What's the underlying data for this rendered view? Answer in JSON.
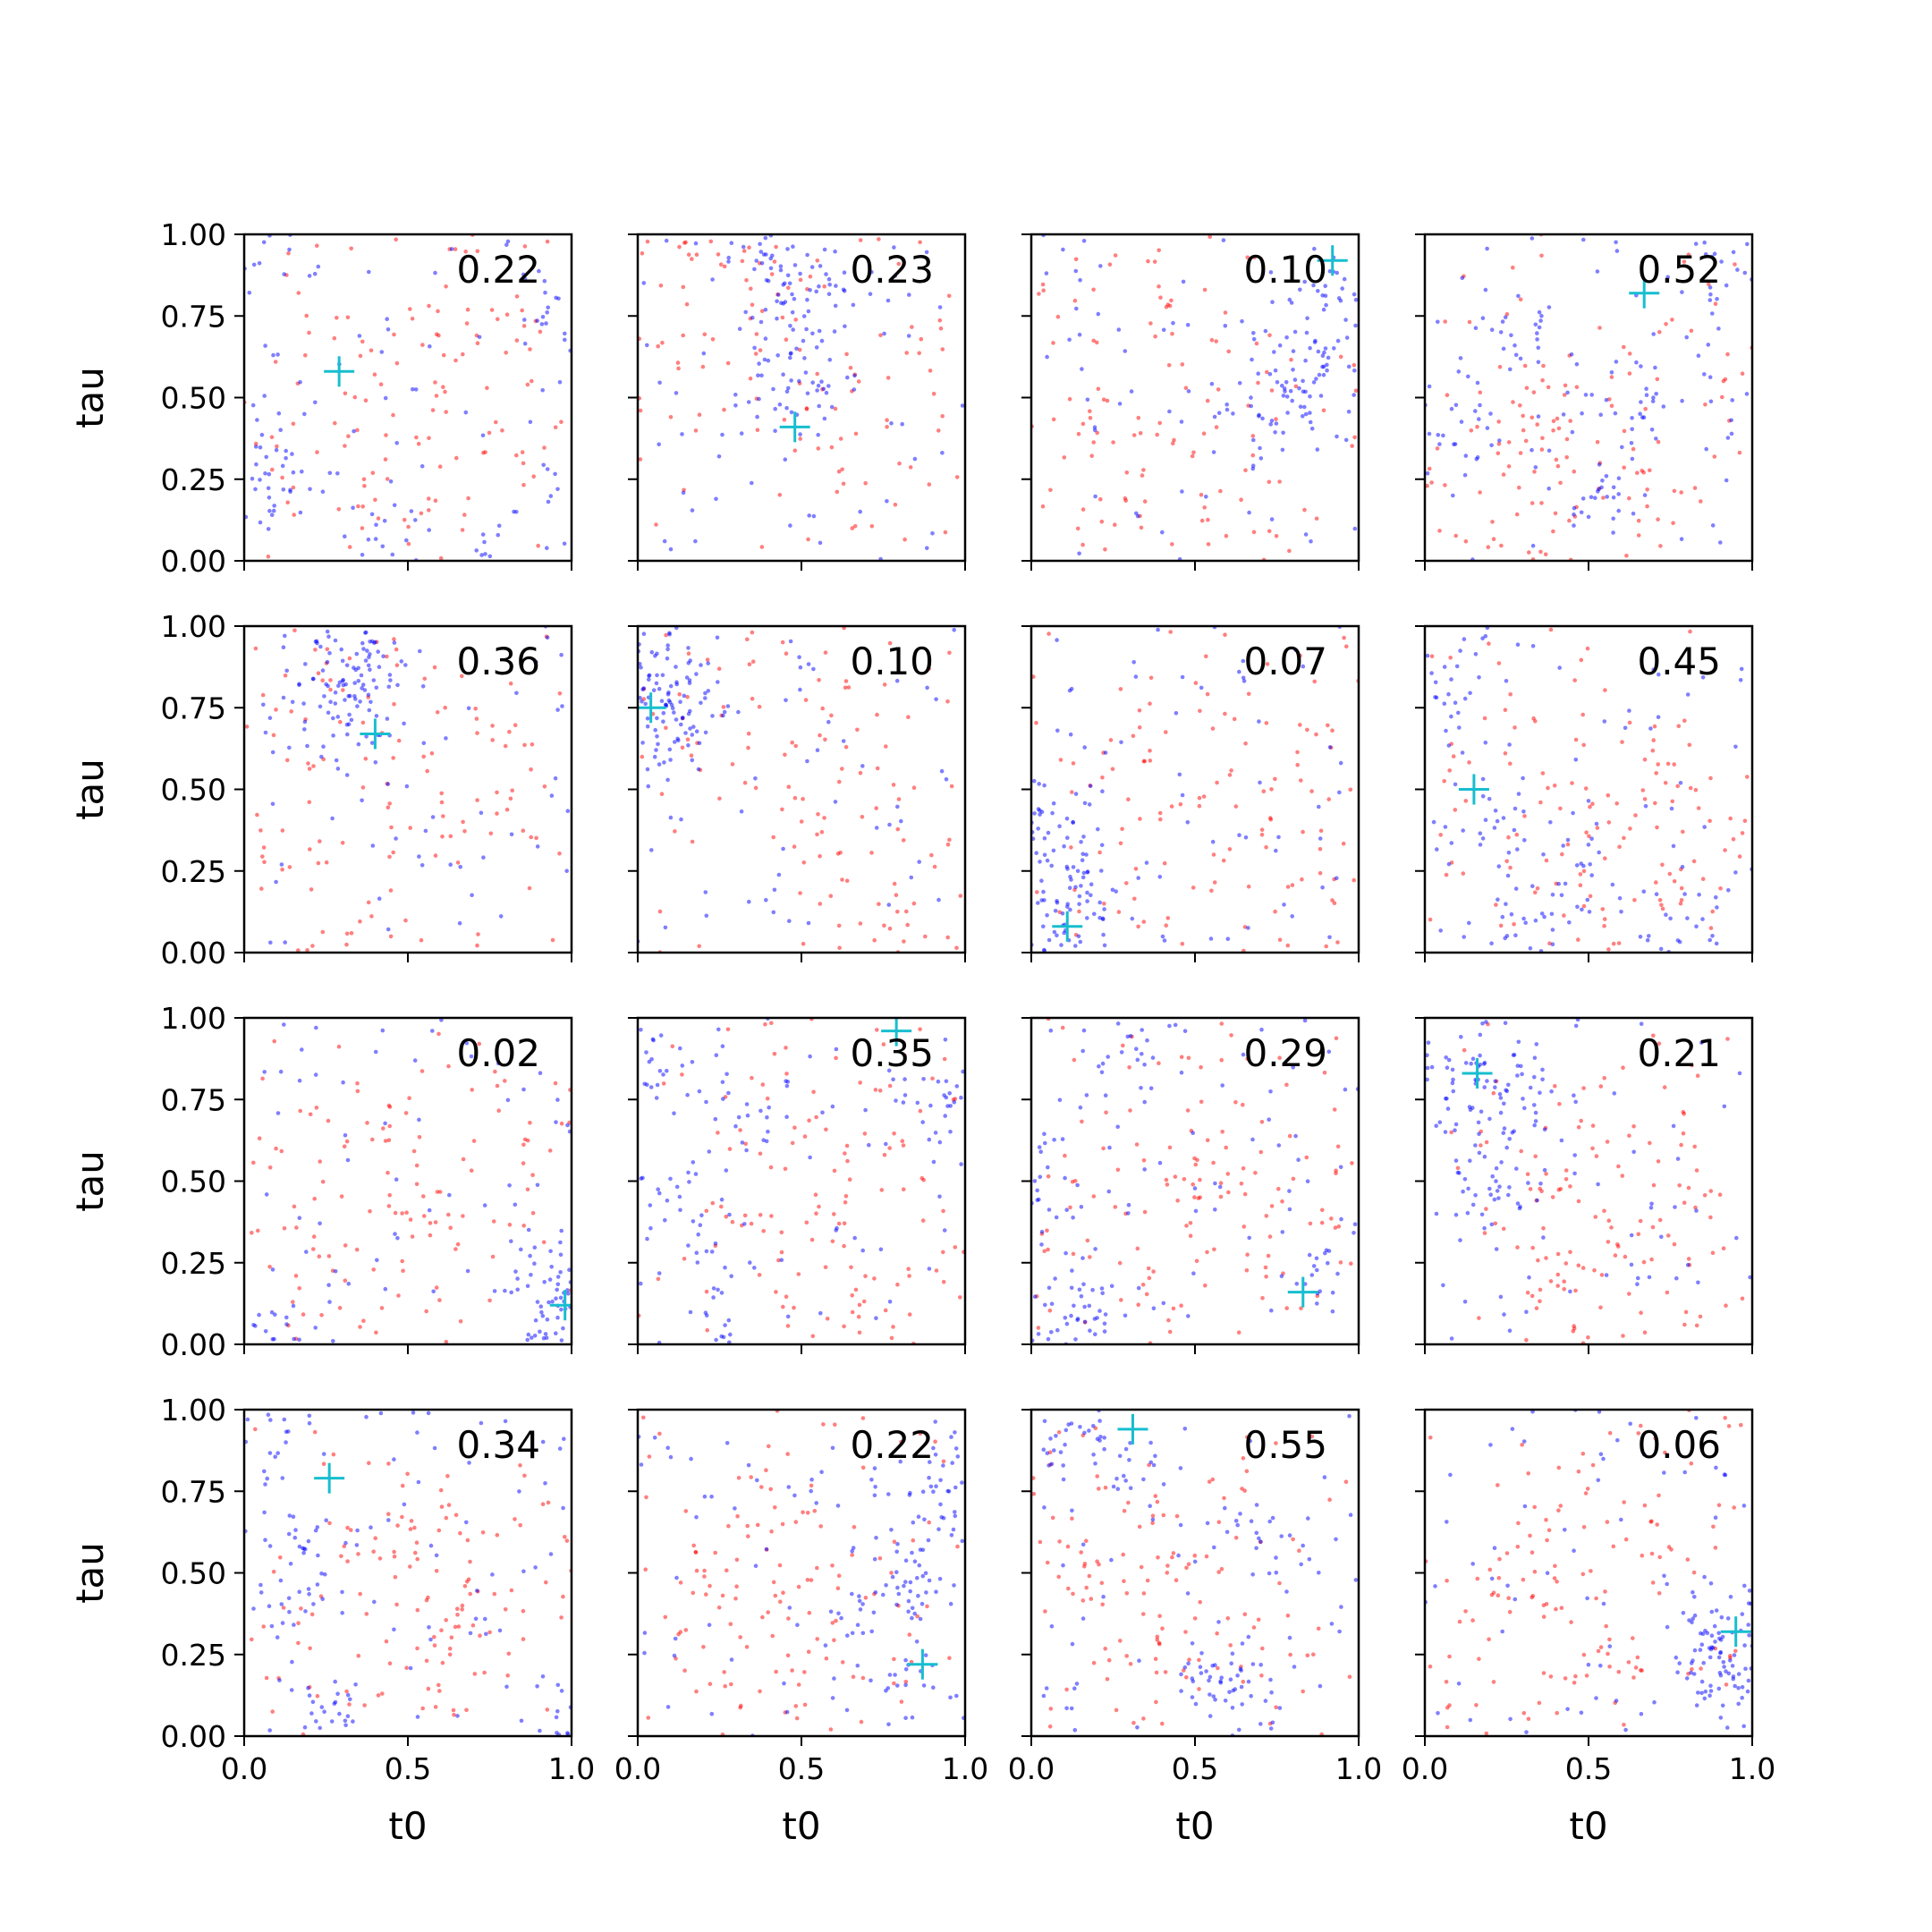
{
  "figure": {
    "rows": 4,
    "cols": 4,
    "x_label": "t0",
    "y_label": "tau",
    "x_ticks": [
      "0.0",
      "0.5",
      "1.0"
    ],
    "y_ticks": [
      "0.00",
      "0.25",
      "0.50",
      "0.75",
      "1.00"
    ],
    "colors": {
      "series_a": "#0000ff",
      "series_b": "#ff0000",
      "marker": "#17becf"
    }
  },
  "chart_data": [
    {
      "type": "scatter",
      "annotation": "0.22",
      "xlim": [
        0,
        1
      ],
      "ylim": [
        0,
        1
      ],
      "xlabel": "t0",
      "ylabel": "tau",
      "marker": {
        "x": 0.29,
        "y": 0.58
      },
      "series": [
        {
          "color": "#0000ff",
          "points": [
            [
              0.42,
              0.08
            ],
            [
              0.4,
              0.04
            ],
            [
              0.03,
              0.18
            ],
            [
              0.97,
              0.15
            ],
            [
              0.06,
              0.95
            ],
            [
              0.8,
              0.02
            ],
            [
              0.36,
              0.1
            ],
            [
              0.95,
              0.78
            ],
            [
              0.1,
              0.3
            ]
          ]
        },
        {
          "color": "#ff0000",
          "points": [
            [
              0.5,
              0.45
            ],
            [
              0.7,
              0.4
            ],
            [
              0.35,
              0.25
            ],
            [
              0.85,
              0.5
            ],
            [
              0.6,
              0.8
            ]
          ]
        }
      ]
    },
    {
      "type": "scatter",
      "annotation": "0.23",
      "xlim": [
        0,
        1
      ],
      "ylim": [
        0,
        1
      ],
      "xlabel": "t0",
      "ylabel": "tau",
      "marker": {
        "x": 0.48,
        "y": 0.41
      },
      "series": [
        {
          "color": "#0000ff",
          "points": [
            [
              0.45,
              0.6
            ],
            [
              0.48,
              0.5
            ],
            [
              0.43,
              0.75
            ],
            [
              0.5,
              0.85
            ],
            [
              0.4,
              0.95
            ]
          ]
        },
        {
          "color": "#ff0000",
          "points": [
            [
              0.3,
              0.75
            ],
            [
              0.2,
              0.85
            ],
            [
              0.6,
              0.3
            ],
            [
              0.8,
              0.55
            ],
            [
              0.15,
              0.7
            ]
          ]
        }
      ]
    },
    {
      "type": "scatter",
      "annotation": "0.10",
      "xlim": [
        0,
        1
      ],
      "ylim": [
        0,
        1
      ],
      "xlabel": "t0",
      "ylabel": "tau",
      "marker": {
        "x": 0.92,
        "y": 0.92
      },
      "series": [
        {
          "color": "#0000ff",
          "points": [
            [
              0.85,
              0.6
            ],
            [
              0.9,
              0.7
            ],
            [
              0.75,
              0.45
            ],
            [
              0.95,
              0.85
            ],
            [
              0.8,
              0.5
            ]
          ]
        },
        {
          "color": "#ff0000",
          "points": [
            [
              0.2,
              0.4
            ],
            [
              0.4,
              0.6
            ],
            [
              0.1,
              0.1
            ],
            [
              0.5,
              0.3
            ],
            [
              0.3,
              0.8
            ]
          ]
        }
      ]
    },
    {
      "type": "scatter",
      "annotation": "0.52",
      "xlim": [
        0,
        1
      ],
      "ylim": [
        0,
        1
      ],
      "xlabel": "t0",
      "ylabel": "tau",
      "marker": {
        "x": 0.67,
        "y": 0.82
      },
      "series": [
        {
          "color": "#0000ff",
          "points": [
            [
              0.3,
              0.7
            ],
            [
              0.6,
              0.5
            ],
            [
              0.9,
              0.9
            ],
            [
              0.1,
              0.4
            ],
            [
              0.5,
              0.2
            ]
          ]
        },
        {
          "color": "#ff0000",
          "points": [
            [
              0.4,
              0.35
            ],
            [
              0.5,
              0.15
            ],
            [
              0.3,
              0.5
            ],
            [
              0.7,
              0.3
            ],
            [
              0.2,
              0.25
            ]
          ]
        }
      ]
    },
    {
      "type": "scatter",
      "annotation": "0.36",
      "xlim": [
        0,
        1
      ],
      "ylim": [
        0,
        1
      ],
      "xlabel": "t0",
      "ylabel": "tau",
      "marker": {
        "x": 0.4,
        "y": 0.67
      },
      "series": [
        {
          "color": "#0000ff",
          "points": [
            [
              0.3,
              0.85
            ],
            [
              0.25,
              0.95
            ],
            [
              0.35,
              0.8
            ],
            [
              0.4,
              0.9
            ],
            [
              0.3,
              0.7
            ]
          ]
        },
        {
          "color": "#ff0000",
          "points": [
            [
              0.35,
              0.75
            ],
            [
              0.2,
              0.8
            ],
            [
              0.6,
              0.5
            ],
            [
              0.1,
              0.3
            ],
            [
              0.8,
              0.6
            ]
          ]
        }
      ]
    },
    {
      "type": "scatter",
      "annotation": "0.10",
      "xlim": [
        0,
        1
      ],
      "ylim": [
        0,
        1
      ],
      "xlabel": "t0",
      "ylabel": "tau",
      "marker": {
        "x": 0.04,
        "y": 0.75
      },
      "series": [
        {
          "color": "#0000ff",
          "points": [
            [
              0.05,
              0.75
            ],
            [
              0.1,
              0.8
            ],
            [
              0.08,
              0.65
            ],
            [
              0.15,
              0.7
            ],
            [
              0.03,
              0.9
            ]
          ]
        },
        {
          "color": "#ff0000",
          "points": [
            [
              0.12,
              0.65
            ],
            [
              0.5,
              0.5
            ],
            [
              0.7,
              0.25
            ],
            [
              0.4,
              0.8
            ],
            [
              0.9,
              0.1
            ]
          ]
        }
      ]
    },
    {
      "type": "scatter",
      "annotation": "0.07",
      "xlim": [
        0,
        1
      ],
      "ylim": [
        0,
        1
      ],
      "xlabel": "t0",
      "ylabel": "tau",
      "marker": {
        "x": 0.11,
        "y": 0.08
      },
      "series": [
        {
          "color": "#0000ff",
          "points": [
            [
              0.1,
              0.15
            ],
            [
              0.08,
              0.3
            ],
            [
              0.12,
              0.05
            ],
            [
              0.06,
              0.4
            ],
            [
              0.15,
              0.2
            ]
          ]
        },
        {
          "color": "#ff0000",
          "points": [
            [
              0.5,
              0.5
            ],
            [
              0.7,
              0.3
            ],
            [
              0.3,
              0.2
            ],
            [
              0.85,
              0.7
            ],
            [
              0.4,
              0.8
            ]
          ]
        }
      ]
    },
    {
      "type": "scatter",
      "annotation": "0.45",
      "xlim": [
        0,
        1
      ],
      "ylim": [
        0,
        1
      ],
      "xlabel": "t0",
      "ylabel": "tau",
      "marker": {
        "x": 0.15,
        "y": 0.5
      },
      "series": [
        {
          "color": "#0000ff",
          "points": [
            [
              0.3,
              0.1
            ],
            [
              0.5,
              0.2
            ],
            [
              0.2,
              0.4
            ],
            [
              0.8,
              0.05
            ],
            [
              0.1,
              0.8
            ]
          ]
        },
        {
          "color": "#ff0000",
          "points": [
            [
              0.5,
              0.4
            ],
            [
              0.4,
              0.2
            ],
            [
              0.7,
              0.3
            ],
            [
              0.3,
              0.5
            ],
            [
              0.6,
              0.6
            ]
          ]
        }
      ]
    },
    {
      "type": "scatter",
      "annotation": "0.02",
      "xlim": [
        0,
        1
      ],
      "ylim": [
        0,
        1
      ],
      "xlabel": "t0",
      "ylabel": "tau",
      "marker": {
        "x": 0.98,
        "y": 0.12
      },
      "series": [
        {
          "color": "#0000ff",
          "points": [
            [
              0.98,
              0.1
            ],
            [
              0.96,
              0.15
            ],
            [
              0.99,
              0.05
            ],
            [
              0.05,
              0.01
            ],
            [
              0.95,
              0.2
            ]
          ]
        },
        {
          "color": "#ff0000",
          "points": [
            [
              0.3,
              0.5
            ],
            [
              0.6,
              0.4
            ],
            [
              0.1,
              0.2
            ],
            [
              0.5,
              0.8
            ],
            [
              0.8,
              0.6
            ]
          ]
        }
      ]
    },
    {
      "type": "scatter",
      "annotation": "0.35",
      "xlim": [
        0,
        1
      ],
      "ylim": [
        0,
        1
      ],
      "xlabel": "t0",
      "ylabel": "tau",
      "marker": {
        "x": 0.79,
        "y": 0.96
      },
      "series": [
        {
          "color": "#0000ff",
          "points": [
            [
              0.2,
              0.05
            ],
            [
              0.1,
              0.4
            ],
            [
              0.3,
              0.7
            ],
            [
              0.05,
              0.9
            ],
            [
              0.9,
              0.8
            ]
          ]
        },
        {
          "color": "#ff0000",
          "points": [
            [
              0.5,
              0.5
            ],
            [
              0.7,
              0.3
            ],
            [
              0.4,
              0.2
            ],
            [
              0.6,
              0.7
            ],
            [
              0.8,
              0.1
            ]
          ]
        }
      ]
    },
    {
      "type": "scatter",
      "annotation": "0.29",
      "xlim": [
        0,
        1
      ],
      "ylim": [
        0,
        1
      ],
      "xlabel": "t0",
      "ylabel": "tau",
      "marker": {
        "x": 0.83,
        "y": 0.16
      },
      "series": [
        {
          "color": "#0000ff",
          "points": [
            [
              0.1,
              0.1
            ],
            [
              0.2,
              0.05
            ],
            [
              0.05,
              0.5
            ],
            [
              0.9,
              0.2
            ],
            [
              0.3,
              0.9
            ]
          ]
        },
        {
          "color": "#ff0000",
          "points": [
            [
              0.5,
              0.4
            ],
            [
              0.7,
              0.5
            ],
            [
              0.4,
              0.2
            ],
            [
              0.8,
              0.3
            ],
            [
              0.6,
              0.6
            ]
          ]
        }
      ]
    },
    {
      "type": "scatter",
      "annotation": "0.21",
      "xlim": [
        0,
        1
      ],
      "ylim": [
        0,
        1
      ],
      "xlabel": "t0",
      "ylabel": "tau",
      "marker": {
        "x": 0.16,
        "y": 0.83
      },
      "series": [
        {
          "color": "#0000ff",
          "points": [
            [
              0.15,
              0.75
            ],
            [
              0.2,
              0.6
            ],
            [
              0.1,
              0.9
            ],
            [
              0.25,
              0.45
            ],
            [
              0.3,
              0.8
            ]
          ]
        },
        {
          "color": "#ff0000",
          "points": [
            [
              0.5,
              0.4
            ],
            [
              0.6,
              0.3
            ],
            [
              0.4,
              0.25
            ],
            [
              0.8,
              0.5
            ],
            [
              0.3,
              0.6
            ]
          ]
        }
      ]
    },
    {
      "type": "scatter",
      "annotation": "0.34",
      "xlim": [
        0,
        1
      ],
      "ylim": [
        0,
        1
      ],
      "xlabel": "t0",
      "ylabel": "tau",
      "marker": {
        "x": 0.26,
        "y": 0.79
      },
      "series": [
        {
          "color": "#0000ff",
          "points": [
            [
              0.27,
              0.06
            ],
            [
              0.1,
              0.4
            ],
            [
              0.2,
              0.6
            ],
            [
              0.05,
              0.9
            ],
            [
              0.97,
              0.05
            ]
          ]
        },
        {
          "color": "#ff0000",
          "points": [
            [
              0.5,
              0.5
            ],
            [
              0.7,
              0.6
            ],
            [
              0.4,
              0.3
            ],
            [
              0.8,
              0.4
            ],
            [
              0.6,
              0.2
            ]
          ]
        }
      ]
    },
    {
      "type": "scatter",
      "annotation": "0.22",
      "xlim": [
        0,
        1
      ],
      "ylim": [
        0,
        1
      ],
      "xlabel": "t0",
      "ylabel": "tau",
      "marker": {
        "x": 0.87,
        "y": 0.22
      },
      "series": [
        {
          "color": "#0000ff",
          "points": [
            [
              0.85,
              0.5
            ],
            [
              0.9,
              0.7
            ],
            [
              0.75,
              0.4
            ],
            [
              0.95,
              0.85
            ],
            [
              0.8,
              0.2
            ]
          ]
        },
        {
          "color": "#ff0000",
          "points": [
            [
              0.3,
              0.3
            ],
            [
              0.5,
              0.4
            ],
            [
              0.2,
              0.5
            ],
            [
              0.6,
              0.2
            ],
            [
              0.4,
              0.6
            ]
          ]
        }
      ]
    },
    {
      "type": "scatter",
      "annotation": "0.55",
      "xlim": [
        0,
        1
      ],
      "ylim": [
        0,
        1
      ],
      "xlabel": "t0",
      "ylabel": "tau",
      "marker": {
        "x": 0.31,
        "y": 0.94
      },
      "series": [
        {
          "color": "#0000ff",
          "points": [
            [
              0.62,
              0.08
            ],
            [
              0.6,
              0.15
            ],
            [
              0.3,
              0.8
            ],
            [
              0.7,
              0.6
            ],
            [
              0.1,
              0.9
            ]
          ]
        },
        {
          "color": "#ff0000",
          "points": [
            [
              0.4,
              0.4
            ],
            [
              0.5,
              0.3
            ],
            [
              0.3,
              0.5
            ],
            [
              0.6,
              0.45
            ],
            [
              0.2,
              0.6
            ]
          ]
        }
      ]
    },
    {
      "type": "scatter",
      "annotation": "0.06",
      "xlim": [
        0,
        1
      ],
      "ylim": [
        0,
        1
      ],
      "xlabel": "t0",
      "ylabel": "tau",
      "marker": {
        "x": 0.95,
        "y": 0.32
      },
      "series": [
        {
          "color": "#0000ff",
          "points": [
            [
              0.9,
              0.3
            ],
            [
              0.95,
              0.25
            ],
            [
              0.85,
              0.2
            ],
            [
              0.92,
              0.4
            ],
            [
              0.88,
              0.15
            ]
          ]
        },
        {
          "color": "#ff0000",
          "points": [
            [
              0.4,
              0.5
            ],
            [
              0.6,
              0.4
            ],
            [
              0.2,
              0.3
            ],
            [
              0.5,
              0.7
            ],
            [
              0.3,
              0.2
            ]
          ]
        }
      ]
    }
  ]
}
